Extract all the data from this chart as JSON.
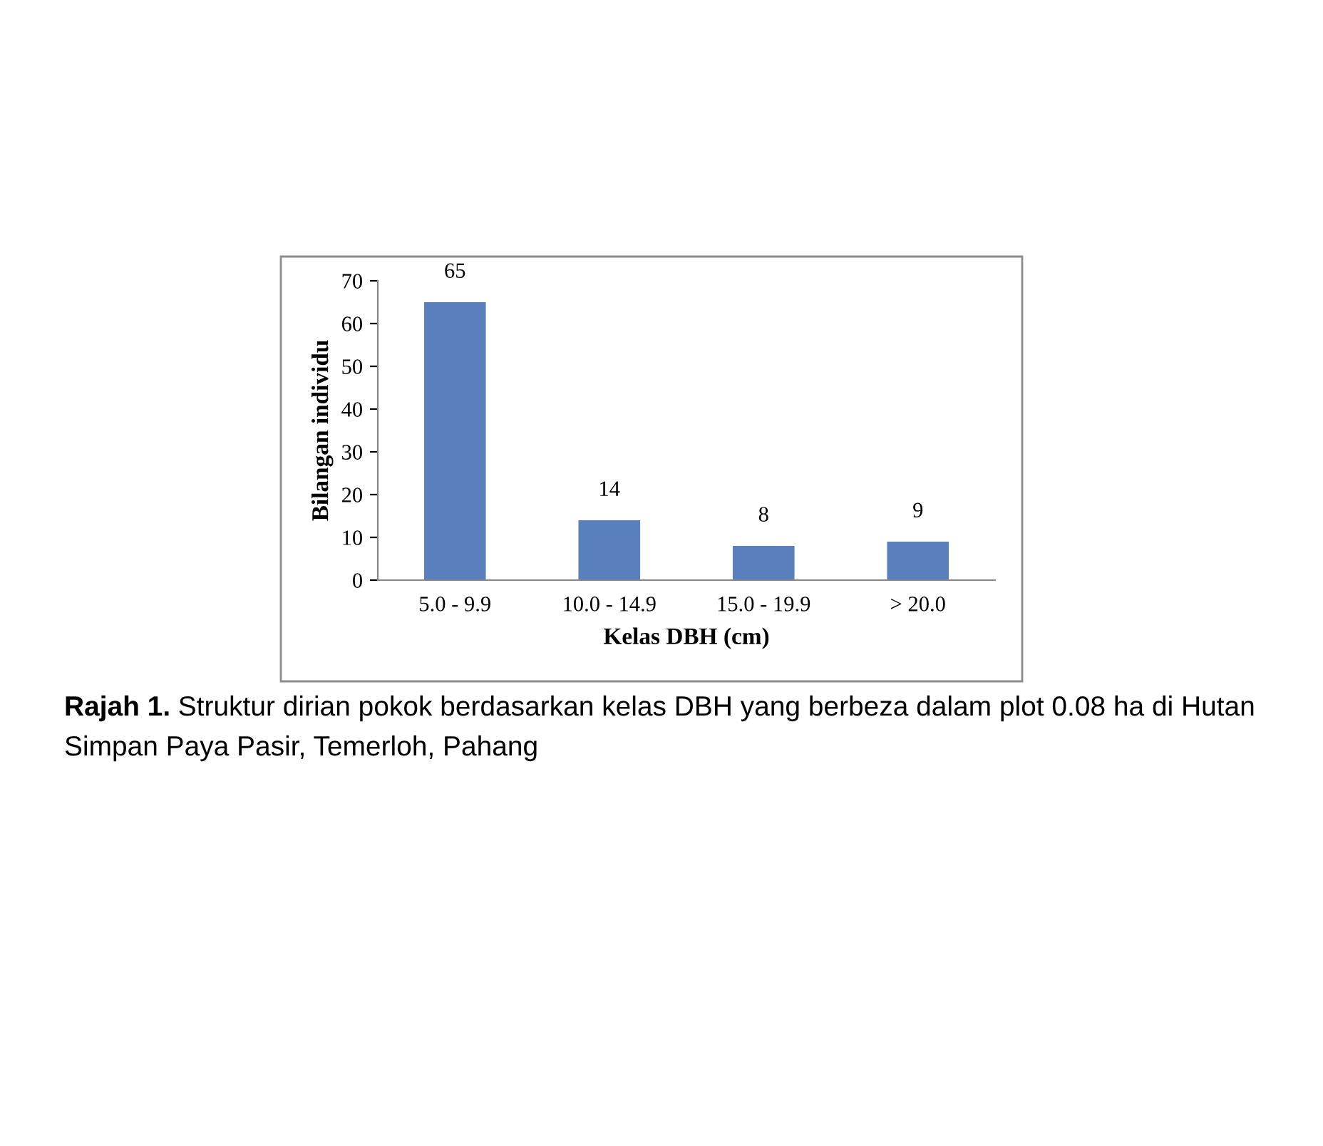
{
  "chart_data": {
    "type": "bar",
    "categories": [
      "5.0 - 9.9",
      "10.0 - 14.9",
      "15.0 - 19.9",
      "> 20.0"
    ],
    "values": [
      65,
      14,
      8,
      9
    ],
    "color": "#5a7fbd",
    "xlabel": "Kelas DBH (cm)",
    "ylabel": "Bilangan individu",
    "ylim": [
      0,
      70
    ],
    "yticks": [
      0,
      10,
      20,
      30,
      40,
      50,
      60,
      70
    ],
    "data_labels": true,
    "grid": false,
    "legend": false,
    "annotations": [
      "Rajah 1.",
      "Struktur dirian pokok berdasarkan kelas DBH yang berbeza dalam plot 0.08 ha di Hutan Simpan Paya Pasir, Temerloh, Pahang"
    ]
  }
}
